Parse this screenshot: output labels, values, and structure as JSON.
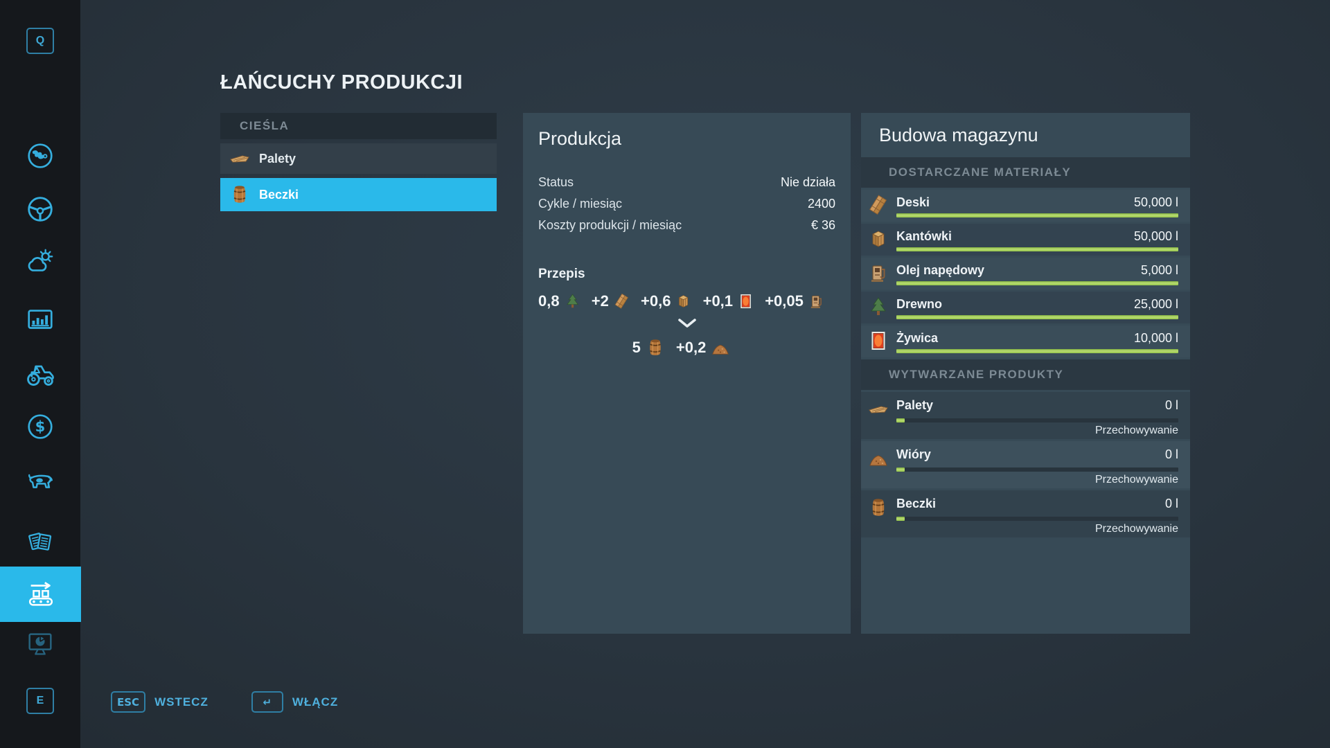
{
  "page_title": "ŁAŃCUCHY PRODUKCJI",
  "colors": {
    "accent": "#2ab9ea",
    "bar_green": "#a4cd52",
    "panel": "#374a56",
    "sidebar": "#15181c"
  },
  "sidebar": {
    "top_key": "Q",
    "bottom_key": "E",
    "items": [
      {
        "name": "map",
        "icon": "globe-icon"
      },
      {
        "name": "vehicles",
        "icon": "steering-wheel-icon"
      },
      {
        "name": "weather",
        "icon": "weather-icon"
      },
      {
        "name": "statistics",
        "icon": "stats-icon"
      },
      {
        "name": "garage",
        "icon": "tractor-icon"
      },
      {
        "name": "finances",
        "icon": "dollar-coin-icon"
      },
      {
        "name": "animals",
        "icon": "cow-icon"
      },
      {
        "name": "contracts",
        "icon": "documents-icon"
      },
      {
        "name": "production-chains",
        "icon": "conveyor-icon",
        "selected": true
      },
      {
        "name": "presentation",
        "icon": "monitor-chart-icon",
        "dimmed": true
      }
    ]
  },
  "chain_list": {
    "header": "CIEŚLA",
    "items": [
      {
        "label": "Palety",
        "icon": "pallet-icon",
        "selected": false
      },
      {
        "label": "Beczki",
        "icon": "barrel-icon",
        "selected": true
      }
    ]
  },
  "production": {
    "title": "Produkcja",
    "rows": [
      {
        "label": "Status",
        "value": "Nie działa"
      },
      {
        "label": "Cykle / miesiąc",
        "value": "2400"
      },
      {
        "label": "Koszty produkcji / miesiąc",
        "value": "€ 36"
      }
    ],
    "recipe": {
      "label": "Przepis",
      "inputs": [
        {
          "qty": "0,8",
          "item": "Drewno",
          "icon": "tree-icon"
        },
        {
          "qty": "+2",
          "item": "Deski",
          "icon": "planks-icon"
        },
        {
          "qty": "+0,6",
          "item": "Kantówki",
          "icon": "crate-icon"
        },
        {
          "qty": "+0,1",
          "item": "Żywica",
          "icon": "resin-icon"
        },
        {
          "qty": "+0,05",
          "item": "Olej napędowy",
          "icon": "fuel-pump-icon"
        }
      ],
      "outputs": [
        {
          "qty": "5",
          "item": "Beczki",
          "icon": "barrel-icon"
        },
        {
          "qty": "+0,2",
          "item": "Wióry",
          "icon": "woodchips-icon"
        }
      ]
    }
  },
  "storage": {
    "title": "Budowa magazynu",
    "materials_header": "DOSTARCZANE MATERIAŁY",
    "materials": [
      {
        "name": "Deski",
        "amount": "50,000 l",
        "fill": 100,
        "icon": "planks-icon"
      },
      {
        "name": "Kantówki",
        "amount": "50,000 l",
        "fill": 100,
        "icon": "crate-icon"
      },
      {
        "name": "Olej napędowy",
        "amount": "5,000 l",
        "fill": 100,
        "icon": "fuel-pump-icon"
      },
      {
        "name": "Drewno",
        "amount": "25,000 l",
        "fill": 100,
        "icon": "tree-icon"
      },
      {
        "name": "Żywica",
        "amount": "10,000 l",
        "fill": 100,
        "icon": "resin-icon"
      }
    ],
    "products_header": "WYTWARZANE PRODUKTY",
    "products": [
      {
        "name": "Palety",
        "amount": "0 l",
        "fill": 3,
        "mode": "Przechowywanie",
        "icon": "pallet-icon"
      },
      {
        "name": "Wióry",
        "amount": "0 l",
        "fill": 3,
        "mode": "Przechowywanie",
        "icon": "woodchips-icon"
      },
      {
        "name": "Beczki",
        "amount": "0 l",
        "fill": 3,
        "mode": "Przechowywanie",
        "icon": "barrel-icon"
      }
    ]
  },
  "footer": {
    "back_key": "ESC",
    "back_label": "WSTECZ",
    "activate_key": "↵",
    "activate_label": "WŁĄCZ"
  }
}
